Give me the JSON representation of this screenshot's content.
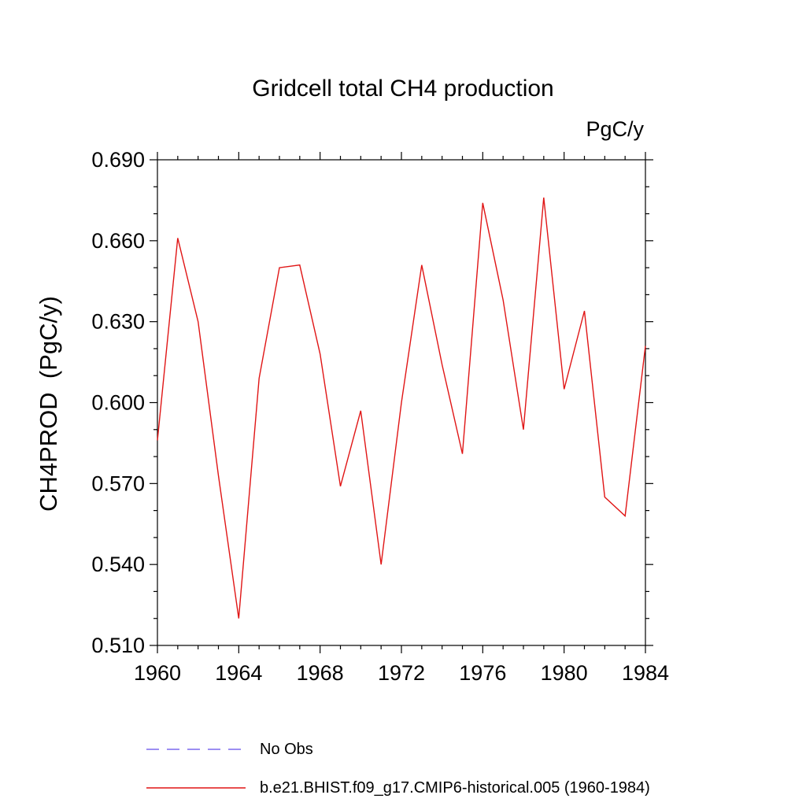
{
  "title": "Gridcell total CH4 production",
  "unit_label": "PgC/y",
  "ylabel": "CH4PROD  (PgC/y)",
  "colors": {
    "axis": "#000000",
    "series_line": "#e01515",
    "no_obs_line": "#7b68ee",
    "background": "#ffffff"
  },
  "legend": [
    {
      "label": "No Obs",
      "color": "#7b68ee",
      "style": "dashed"
    },
    {
      "label": "b.e21.BHIST.f09_g17.CMIP6-historical.005 (1960-1984)",
      "color": "#e01515",
      "style": "solid"
    }
  ],
  "chart_data": {
    "type": "line",
    "title": "Gridcell total CH4 production",
    "xlabel": "",
    "ylabel": "CH4PROD  (PgC/y)",
    "unit": "PgC/y",
    "xlim": [
      1960,
      1984
    ],
    "ylim": [
      0.51,
      0.69
    ],
    "x_ticks": [
      1960,
      1964,
      1968,
      1972,
      1976,
      1980,
      1984
    ],
    "y_ticks": [
      0.51,
      0.54,
      0.57,
      0.6,
      0.63,
      0.66,
      0.69
    ],
    "x_minor_step": 1,
    "y_minor_step": 0.01,
    "grid": false,
    "legend_position": "below",
    "x": [
      1960,
      1961,
      1962,
      1963,
      1964,
      1965,
      1966,
      1967,
      1968,
      1969,
      1970,
      1971,
      1972,
      1973,
      1974,
      1975,
      1976,
      1977,
      1978,
      1979,
      1980,
      1981,
      1982,
      1983,
      1984
    ],
    "series": [
      {
        "name": "b.e21.BHIST.f09_g17.CMIP6-historical.005 (1960-1984)",
        "color": "#e01515",
        "values": [
          0.586,
          0.661,
          0.63,
          0.573,
          0.52,
          0.609,
          0.65,
          0.651,
          0.618,
          0.569,
          0.597,
          0.54,
          0.6,
          0.651,
          0.614,
          0.581,
          0.674,
          0.638,
          0.59,
          0.676,
          0.605,
          0.634,
          0.565,
          0.558,
          0.621
        ]
      }
    ]
  }
}
